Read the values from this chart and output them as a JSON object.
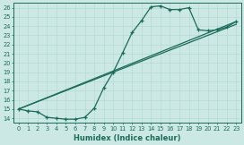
{
  "xlabel": "Humidex (Indice chaleur)",
  "bg_color": "#cce8e4",
  "line_color": "#1a6b5a",
  "grid_color": "#b8ddd8",
  "xlim": [
    -0.5,
    23.5
  ],
  "ylim": [
    13.5,
    26.5
  ],
  "xticks": [
    0,
    1,
    2,
    3,
    4,
    5,
    6,
    7,
    8,
    9,
    10,
    11,
    12,
    13,
    14,
    15,
    16,
    17,
    18,
    19,
    20,
    21,
    22,
    23
  ],
  "yticks": [
    14,
    15,
    16,
    17,
    18,
    19,
    20,
    21,
    22,
    23,
    24,
    25,
    26
  ],
  "line1_x": [
    0,
    1,
    2,
    3,
    4,
    5,
    6,
    7,
    8,
    9,
    10,
    11,
    12,
    13,
    14,
    15,
    16,
    17,
    18,
    19,
    20,
    21,
    22,
    23
  ],
  "line1_y": [
    15.0,
    14.8,
    14.7,
    14.1,
    14.0,
    13.9,
    13.9,
    14.1,
    15.1,
    17.3,
    19.0,
    21.1,
    23.3,
    24.6,
    26.1,
    26.2,
    25.8,
    25.8,
    26.0,
    23.6,
    23.5,
    23.6,
    23.9,
    24.5
  ],
  "line2_x": [
    0,
    23
  ],
  "line2_y": [
    15.0,
    24.5
  ],
  "line3_x": [
    0,
    23
  ],
  "line3_y": [
    15.0,
    24.2
  ]
}
